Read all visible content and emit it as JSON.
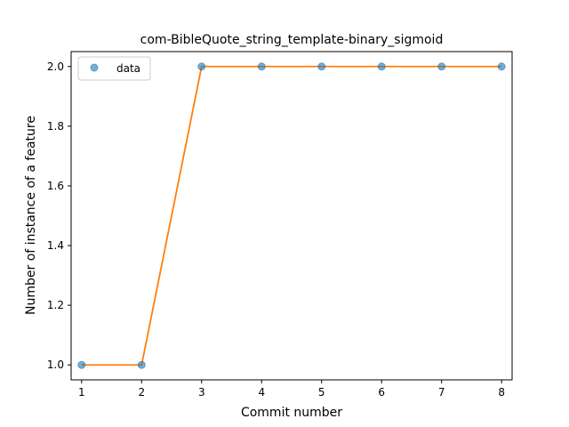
{
  "chart_data": {
    "type": "line",
    "title": "com-BibleQuote_string_template-binary_sigmoid",
    "xlabel": "Commit number",
    "ylabel": "Number of instance of a feature",
    "x": [
      1,
      2,
      3,
      4,
      5,
      6,
      7,
      8
    ],
    "xlim": [
      0.825,
      8.175
    ],
    "ylim": [
      0.95,
      2.05
    ],
    "xticks": [
      1,
      2,
      3,
      4,
      5,
      6,
      7,
      8
    ],
    "yticks": [
      1.0,
      1.2,
      1.4,
      1.6,
      1.8,
      2.0
    ],
    "xtick_labels": [
      "1",
      "2",
      "3",
      "4",
      "5",
      "6",
      "7",
      "8"
    ],
    "ytick_labels": [
      "1.0",
      "1.2",
      "1.4",
      "1.6",
      "1.8",
      "2.0"
    ],
    "grid": false,
    "legend_placement": "top-left",
    "series": [
      {
        "name": "data",
        "style": "markers",
        "color": "#1f77b4",
        "values": [
          1,
          1,
          2,
          2,
          2,
          2,
          2,
          2
        ]
      },
      {
        "style": "line",
        "color": "#ff7f0e",
        "values": [
          1,
          1,
          2,
          2,
          2,
          2,
          2,
          2
        ]
      }
    ]
  }
}
